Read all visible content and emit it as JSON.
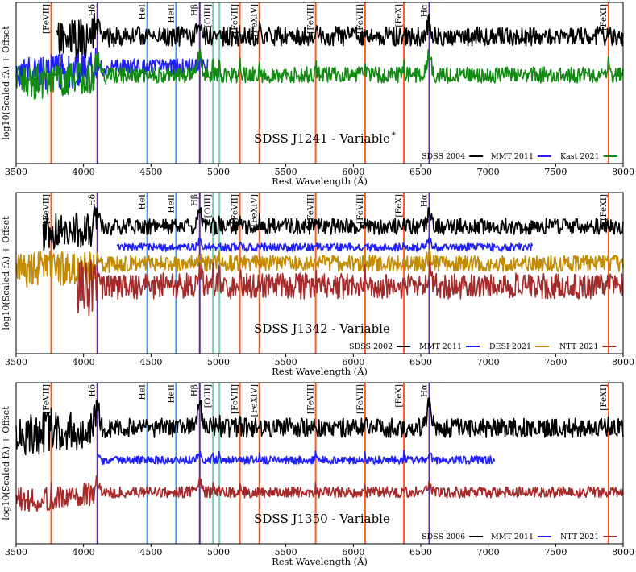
{
  "chart_data": [
    {
      "type": "line",
      "title": "SDSS J1241 - Variable",
      "title_sup": "*",
      "xlabel": "Rest Wavelength (Å)",
      "ylabel": "log10(Scaled fλ) + Offset",
      "xlim": [
        3500,
        8000
      ],
      "xticks": [
        3500,
        4000,
        4500,
        5000,
        5500,
        6000,
        6500,
        7000,
        7500,
        8000
      ],
      "lines": [
        {
          "label": "[FeVII]",
          "wavelength": 3760,
          "color": "#ff5b1f"
        },
        {
          "label": "Hδ",
          "wavelength": 4102,
          "color": "#5b2ca3"
        },
        {
          "label": "HeI",
          "wavelength": 4472,
          "color": "#4d8fd8"
        },
        {
          "label": "HeII",
          "wavelength": 4686,
          "color": "#4d8fd8"
        },
        {
          "label": "Hβ",
          "wavelength": 4861,
          "color": "#5b2ca3"
        },
        {
          "label": "[OIII]",
          "wavelength": 4959,
          "color": "#6fd3b0"
        },
        {
          "label": "",
          "wavelength": 5007,
          "color": "#6fd3b0"
        },
        {
          "label": "[FeVII]",
          "wavelength": 5159,
          "color": "#ff5b1f"
        },
        {
          "label": "[FeXIV]",
          "wavelength": 5303,
          "color": "#ff5b1f"
        },
        {
          "label": "[FeVII]",
          "wavelength": 5721,
          "color": "#ff5b1f"
        },
        {
          "label": "[FeVII]",
          "wavelength": 6087,
          "color": "#ff5b1f"
        },
        {
          "label": "[FeX]",
          "wavelength": 6375,
          "color": "#ff5b1f"
        },
        {
          "label": "Hα",
          "wavelength": 6563,
          "color": "#5b2ca3"
        },
        {
          "label": "[FeXI]",
          "wavelength": 7892,
          "color": "#ff5b1f"
        }
      ],
      "series": [
        {
          "name": "SDSS 2004",
          "color": "#000000",
          "range": [
            3800,
            8000
          ],
          "level": 0.79,
          "noise": 0.06,
          "seed": 11,
          "broad": 0.35,
          "narrow": 0.45
        },
        {
          "name": "MMT 2011",
          "color": "#1f1fff",
          "range": [
            3500,
            4920
          ],
          "level": 0.6,
          "noise": 0.05,
          "seed": 23,
          "broad": 0.1,
          "narrow": 0.1
        },
        {
          "name": "Kast 2021",
          "color": "#118a11",
          "range": [
            3500,
            8000
          ],
          "level": 0.55,
          "noise": 0.05,
          "seed": 37,
          "broad": 0.55,
          "narrow": 0.6
        }
      ]
    },
    {
      "type": "line",
      "title": "SDSS J1342 - Variable",
      "title_sup": "",
      "xlabel": "Rest Wavelength (Å)",
      "ylabel": "log10(Scaled fλ) + Offset",
      "xlim": [
        3500,
        8000
      ],
      "xticks": [
        3500,
        4000,
        4500,
        5000,
        5500,
        6000,
        6500,
        7000,
        7500,
        8000
      ],
      "lines": [
        {
          "label": "[FeVII]",
          "wavelength": 3760,
          "color": "#ff5b1f"
        },
        {
          "label": "Hδ",
          "wavelength": 4102,
          "color": "#5b2ca3"
        },
        {
          "label": "HeI",
          "wavelength": 4472,
          "color": "#4d8fd8"
        },
        {
          "label": "HeII",
          "wavelength": 4686,
          "color": "#4d8fd8"
        },
        {
          "label": "Hβ",
          "wavelength": 4861,
          "color": "#5b2ca3"
        },
        {
          "label": "[OIII]",
          "wavelength": 4959,
          "color": "#6fd3b0"
        },
        {
          "label": "",
          "wavelength": 5007,
          "color": "#6fd3b0"
        },
        {
          "label": "[FeVII]",
          "wavelength": 5159,
          "color": "#ff5b1f"
        },
        {
          "label": "[FeXIV]",
          "wavelength": 5303,
          "color": "#ff5b1f"
        },
        {
          "label": "[FeVII]",
          "wavelength": 5721,
          "color": "#ff5b1f"
        },
        {
          "label": "[FeVII]",
          "wavelength": 6087,
          "color": "#ff5b1f"
        },
        {
          "label": "[FeX]",
          "wavelength": 6375,
          "color": "#ff5b1f"
        },
        {
          "label": "Hα",
          "wavelength": 6563,
          "color": "#5b2ca3"
        },
        {
          "label": "[FeXI]",
          "wavelength": 7892,
          "color": "#ff5b1f"
        }
      ],
      "series": [
        {
          "name": "SDSS 2002",
          "color": "#000000",
          "range": [
            3700,
            8000
          ],
          "level": 0.79,
          "noise": 0.05,
          "seed": 41,
          "broad": 0.35,
          "narrow": 0.35
        },
        {
          "name": "MMT 2011",
          "color": "#1f1fff",
          "range": [
            4250,
            7330
          ],
          "level": 0.66,
          "noise": 0.025,
          "seed": 53,
          "broad": 0.15,
          "narrow": 0.2
        },
        {
          "name": "DESI 2021",
          "color": "#c28b00",
          "range": [
            3500,
            8000
          ],
          "level": 0.56,
          "noise": 0.05,
          "seed": 67,
          "broad": 0.15,
          "narrow": 0.25
        },
        {
          "name": "NTT 2021",
          "color": "#a52a2a",
          "range": [
            3950,
            8000
          ],
          "level": 0.42,
          "noise": 0.08,
          "seed": 79,
          "broad": 0.3,
          "narrow": 0.55
        }
      ]
    },
    {
      "type": "line",
      "title": "SDSS J1350 - Variable",
      "title_sup": "",
      "xlabel": "Rest Wavelength (Å)",
      "ylabel": "log10(Scaled fλ) + Offset",
      "xlim": [
        3500,
        8000
      ],
      "xticks": [
        3500,
        4000,
        4500,
        5000,
        5500,
        6000,
        6500,
        7000,
        7500,
        8000
      ],
      "lines": [
        {
          "label": "[FeVII]",
          "wavelength": 3760,
          "color": "#ff5b1f"
        },
        {
          "label": "Hδ",
          "wavelength": 4102,
          "color": "#5b2ca3"
        },
        {
          "label": "HeI",
          "wavelength": 4472,
          "color": "#4d8fd8"
        },
        {
          "label": "HeII",
          "wavelength": 4686,
          "color": "#4d8fd8"
        },
        {
          "label": "Hβ",
          "wavelength": 4861,
          "color": "#5b2ca3"
        },
        {
          "label": "[OIII]",
          "wavelength": 4959,
          "color": "#6fd3b0"
        },
        {
          "label": "",
          "wavelength": 5007,
          "color": "#6fd3b0"
        },
        {
          "label": "[FeVII]",
          "wavelength": 5159,
          "color": "#ff5b1f"
        },
        {
          "label": "[FeXIV]",
          "wavelength": 5303,
          "color": "#ff5b1f"
        },
        {
          "label": "[FeVII]",
          "wavelength": 5721,
          "color": "#ff5b1f"
        },
        {
          "label": "[FeVII]",
          "wavelength": 6087,
          "color": "#ff5b1f"
        },
        {
          "label": "[FeX]",
          "wavelength": 6375,
          "color": "#ff5b1f"
        },
        {
          "label": "Hα",
          "wavelength": 6563,
          "color": "#5b2ca3"
        },
        {
          "label": "[FeXI]",
          "wavelength": 7892,
          "color": "#ff5b1f"
        }
      ],
      "series": [
        {
          "name": "SDSS 2006",
          "color": "#000000",
          "range": [
            3500,
            8000
          ],
          "level": 0.72,
          "noise": 0.06,
          "seed": 83,
          "broad": 0.6,
          "narrow": 0.4
        },
        {
          "name": "MMT 2011",
          "color": "#1f1fff",
          "range": [
            4100,
            7050
          ],
          "level": 0.52,
          "noise": 0.025,
          "seed": 97,
          "broad": 0.12,
          "narrow": 0.35
        },
        {
          "name": "NTT 2021",
          "color": "#a52a2a",
          "range": [
            3500,
            8000
          ],
          "level": 0.32,
          "noise": 0.035,
          "seed": 103,
          "broad": 0.25,
          "narrow": 0.25
        }
      ]
    }
  ]
}
